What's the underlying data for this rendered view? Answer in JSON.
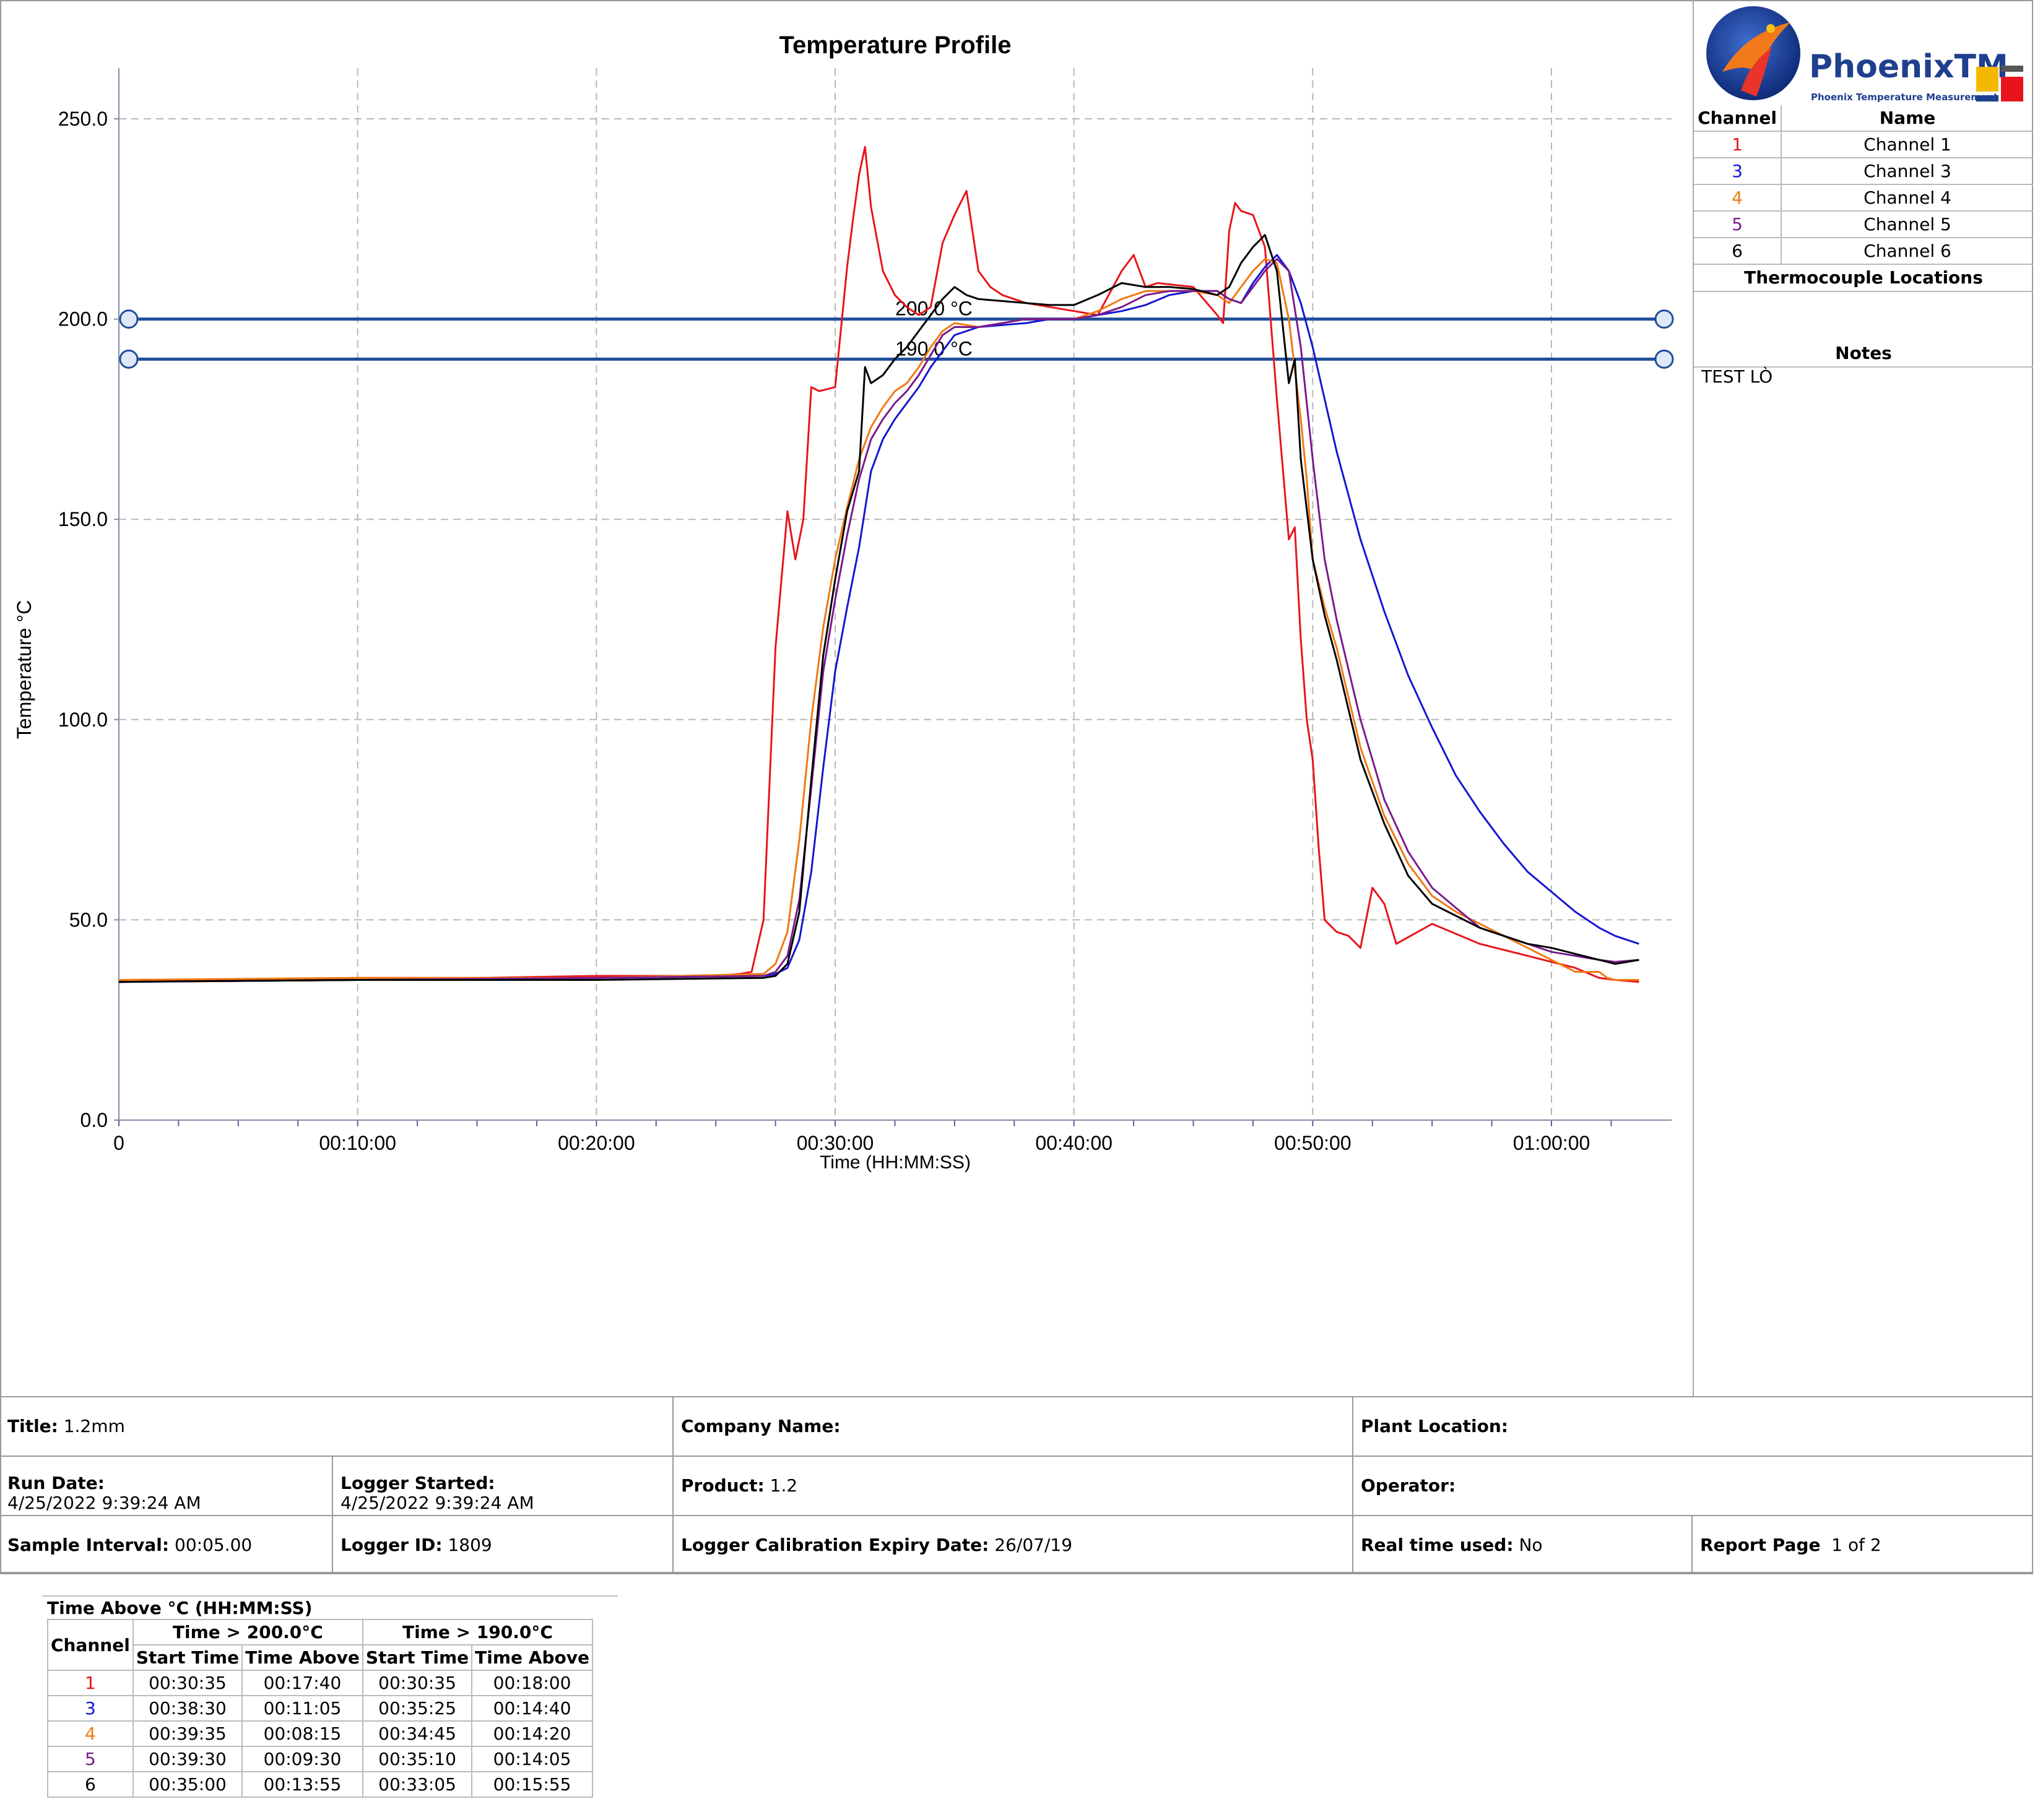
{
  "chart_data": {
    "type": "line",
    "title": "Temperature Profile",
    "xlabel": "Time (HH:MM:SS)",
    "ylabel": "Temperature °C",
    "xlim": [
      0,
      3870
    ],
    "ylim": [
      0,
      260
    ],
    "y_ticks": [
      0,
      50,
      100,
      150,
      200,
      250
    ],
    "y_tick_labels": [
      "0.0",
      "50.0",
      "100.0",
      "150.0",
      "200.0",
      "250.0"
    ],
    "x_ticks": [
      0,
      600,
      1200,
      1800,
      2400,
      3000,
      3600
    ],
    "x_tick_labels": [
      "0",
      "00:10:00",
      "00:20:00",
      "00:30:00",
      "00:40:00",
      "00:50:00",
      "01:00:00"
    ],
    "grid": true,
    "thresholds": [
      {
        "value": 200,
        "label": "200.0 °C"
      },
      {
        "value": 190,
        "label": "190.0 °C"
      }
    ],
    "series": [
      {
        "name": "Channel 1",
        "color": "#e8141b",
        "x": [
          0,
          300,
          600,
          900,
          1200,
          1500,
          1560,
          1590,
          1620,
          1650,
          1680,
          1700,
          1720,
          1740,
          1760,
          1800,
          1830,
          1845,
          1860,
          1875,
          1890,
          1920,
          1950,
          1980,
          2010,
          2040,
          2070,
          2100,
          2130,
          2160,
          2190,
          2220,
          2280,
          2340,
          2400,
          2460,
          2520,
          2550,
          2580,
          2610,
          2700,
          2760,
          2775,
          2790,
          2805,
          2820,
          2850,
          2880,
          2910,
          2940,
          2955,
          2970,
          2985,
          3000,
          3015,
          3030,
          3060,
          3090,
          3120,
          3150,
          3180,
          3210,
          3300,
          3420,
          3540,
          3660,
          3720,
          3760,
          3820
        ],
        "y": [
          34.5,
          35,
          35.5,
          35.5,
          36,
          36,
          36.5,
          37,
          50,
          118,
          152,
          140,
          150,
          183,
          182,
          183,
          213,
          225,
          236,
          243,
          228,
          212,
          206,
          203,
          201,
          203,
          219,
          226,
          232,
          212,
          208,
          206,
          204,
          203,
          202,
          201,
          212,
          216,
          208,
          209,
          208,
          201,
          199,
          222,
          229,
          227,
          226,
          218,
          180,
          145,
          148,
          120,
          100,
          90,
          68,
          50,
          47,
          46,
          43,
          58,
          54,
          44,
          49,
          44,
          41,
          38,
          35.5,
          35,
          34.5
        ]
      },
      {
        "name": "Channel 3",
        "color": "#1515d0",
        "x": [
          0,
          600,
          1200,
          1620,
          1650,
          1680,
          1710,
          1740,
          1770,
          1800,
          1830,
          1860,
          1890,
          1920,
          1950,
          1980,
          2010,
          2040,
          2070,
          2100,
          2160,
          2220,
          2280,
          2340,
          2400,
          2460,
          2520,
          2580,
          2640,
          2700,
          2760,
          2790,
          2820,
          2850,
          2880,
          2910,
          2940,
          2970,
          3000,
          3030,
          3060,
          3120,
          3180,
          3240,
          3300,
          3360,
          3420,
          3480,
          3540,
          3600,
          3660,
          3720,
          3760,
          3820
        ],
        "y": [
          34.5,
          35,
          35.5,
          36,
          36.5,
          38,
          45,
          62,
          88,
          112,
          128,
          143,
          162,
          170,
          175,
          179,
          183,
          188,
          192,
          196,
          198,
          198.5,
          199,
          200,
          200,
          201,
          202,
          203.5,
          206,
          207,
          207,
          205,
          204,
          209,
          213,
          216,
          212,
          204,
          193,
          180,
          167,
          145,
          127,
          111,
          98,
          86,
          77,
          69,
          62,
          57,
          52,
          48,
          46,
          44
        ]
      },
      {
        "name": "Channel 4",
        "color": "#f07a12",
        "x": [
          0,
          600,
          1200,
          1620,
          1650,
          1680,
          1710,
          1740,
          1770,
          1800,
          1830,
          1860,
          1890,
          1920,
          1950,
          1980,
          2010,
          2040,
          2070,
          2100,
          2160,
          2220,
          2280,
          2340,
          2400,
          2460,
          2520,
          2580,
          2640,
          2700,
          2760,
          2790,
          2820,
          2850,
          2880,
          2910,
          2940,
          2970,
          2985,
          3000,
          3030,
          3060,
          3120,
          3180,
          3240,
          3300,
          3360,
          3420,
          3480,
          3540,
          3600,
          3660,
          3720,
          3740,
          3760,
          3820
        ],
        "y": [
          35,
          35.5,
          35.5,
          36.5,
          39,
          47,
          70,
          100,
          123,
          140,
          153,
          165,
          173,
          178,
          182,
          184,
          188,
          193,
          197,
          199,
          198,
          199,
          200,
          200,
          200,
          202,
          205,
          207,
          207,
          207,
          206,
          204,
          208,
          212,
          215,
          214,
          200,
          175,
          160,
          140,
          128,
          118,
          93,
          76,
          64,
          56,
          52,
          49,
          46,
          43,
          40,
          37,
          37,
          35.5,
          35,
          35
        ]
      },
      {
        "name": "Channel 5",
        "color": "#7a1a8c",
        "x": [
          0,
          600,
          1200,
          1620,
          1650,
          1680,
          1710,
          1740,
          1770,
          1800,
          1830,
          1860,
          1890,
          1920,
          1950,
          1980,
          2010,
          2040,
          2070,
          2100,
          2160,
          2220,
          2280,
          2340,
          2400,
          2460,
          2520,
          2580,
          2640,
          2700,
          2760,
          2790,
          2820,
          2850,
          2880,
          2910,
          2940,
          2970,
          3000,
          3030,
          3060,
          3120,
          3180,
          3240,
          3300,
          3360,
          3420,
          3480,
          3540,
          3600,
          3660,
          3720,
          3760,
          3820
        ],
        "y": [
          34.5,
          35,
          35.5,
          36,
          37,
          41,
          55,
          83,
          112,
          130,
          146,
          160,
          170,
          175,
          179,
          182,
          186,
          191,
          196,
          198,
          198,
          199,
          200,
          200,
          200,
          201,
          203,
          206,
          207,
          207,
          207,
          205,
          204,
          208,
          212,
          215,
          212,
          193,
          165,
          140,
          125,
          100,
          80,
          67,
          58,
          53,
          48,
          46,
          44,
          42,
          41,
          40,
          39.5,
          40
        ]
      },
      {
        "name": "Channel 6",
        "color": "#000000",
        "x": [
          0,
          600,
          1200,
          1620,
          1650,
          1680,
          1710,
          1740,
          1770,
          1800,
          1830,
          1860,
          1875,
          1890,
          1920,
          1950,
          1980,
          2010,
          2040,
          2070,
          2100,
          2130,
          2160,
          2220,
          2280,
          2340,
          2400,
          2460,
          2520,
          2580,
          2640,
          2700,
          2760,
          2790,
          2820,
          2850,
          2880,
          2910,
          2940,
          2955,
          2970,
          3000,
          3030,
          3060,
          3120,
          3180,
          3240,
          3300,
          3360,
          3420,
          3480,
          3540,
          3600,
          3660,
          3720,
          3760,
          3820
        ],
        "y": [
          34.5,
          35,
          35,
          35.5,
          36,
          39,
          52,
          85,
          116,
          135,
          152,
          162,
          188,
          184,
          186,
          190,
          193,
          197,
          201,
          205,
          208,
          206,
          205,
          204.5,
          204,
          203.5,
          203.5,
          206,
          209,
          208,
          208,
          207.5,
          206,
          208,
          214,
          218,
          221,
          212,
          184,
          190,
          165,
          140,
          126,
          115,
          90,
          74,
          61,
          54,
          51,
          48,
          46,
          44,
          43,
          41.5,
          40,
          39,
          40
        ]
      }
    ]
  },
  "channel_table": {
    "headers": [
      "Channel",
      "Name"
    ],
    "rows": [
      {
        "num": "1",
        "name": "Channel 1",
        "color": "#e8141b"
      },
      {
        "num": "3",
        "name": "Channel 3",
        "color": "#1515d0"
      },
      {
        "num": "4",
        "name": "Channel 4",
        "color": "#f07a12"
      },
      {
        "num": "5",
        "name": "Channel 5",
        "color": "#7a1a8c"
      },
      {
        "num": "6",
        "name": "Channel 6",
        "color": "#000000"
      }
    ]
  },
  "logo": {
    "word": "PhoenixTM",
    "sub": "Phoenix Temperature Measurement"
  },
  "right_panel": {
    "thermocouple_heading": "Thermocouple Locations",
    "notes_heading": "Notes",
    "notes_text": "TEST LÒ"
  },
  "info": {
    "title_label": "Title:",
    "title_value": "1.2mm",
    "company_label": "Company Name:",
    "company_value": "",
    "plant_label": "Plant Location:",
    "plant_value": "",
    "run_date_label": "Run Date:",
    "run_date_value": "4/25/2022 9:39:24 AM",
    "logger_started_label": "Logger Started:",
    "logger_started_value": "4/25/2022 9:39:24 AM",
    "product_label": "Product:",
    "product_value": "1.2",
    "operator_label": "Operator:",
    "operator_value": "",
    "sample_label": "Sample Interval:",
    "sample_value": "00:05.00",
    "logger_id_label": "Logger ID:",
    "logger_id_value": "1809",
    "calib_label": "Logger Calibration Expiry Date:",
    "calib_value": "26/07/19",
    "realtime_label": "Real time used:",
    "realtime_value": "No",
    "report_label": "Report Page",
    "report_value": "1 of 2"
  },
  "time_above": {
    "title": "Time Above °C (HH:MM:SS)",
    "group1": "Time > 200.0°C",
    "group2": "Time > 190.0°C",
    "channel_header": "Channel",
    "start_header": "Start Time",
    "above_header": "Time Above",
    "rows": [
      {
        "ch": "1",
        "color": "#e8141b",
        "s1": "00:30:35",
        "a1": "00:17:40",
        "s2": "00:30:35",
        "a2": "00:18:00"
      },
      {
        "ch": "3",
        "color": "#1515d0",
        "s1": "00:38:30",
        "a1": "00:11:05",
        "s2": "00:35:25",
        "a2": "00:14:40"
      },
      {
        "ch": "4",
        "color": "#f07a12",
        "s1": "00:39:35",
        "a1": "00:08:15",
        "s2": "00:34:45",
        "a2": "00:14:20"
      },
      {
        "ch": "5",
        "color": "#7a1a8c",
        "s1": "00:39:30",
        "a1": "00:09:30",
        "s2": "00:35:10",
        "a2": "00:14:05"
      },
      {
        "ch": "6",
        "color": "#000000",
        "s1": "00:35:00",
        "a1": "00:13:55",
        "s2": "00:33:05",
        "a2": "00:15:55"
      }
    ]
  }
}
